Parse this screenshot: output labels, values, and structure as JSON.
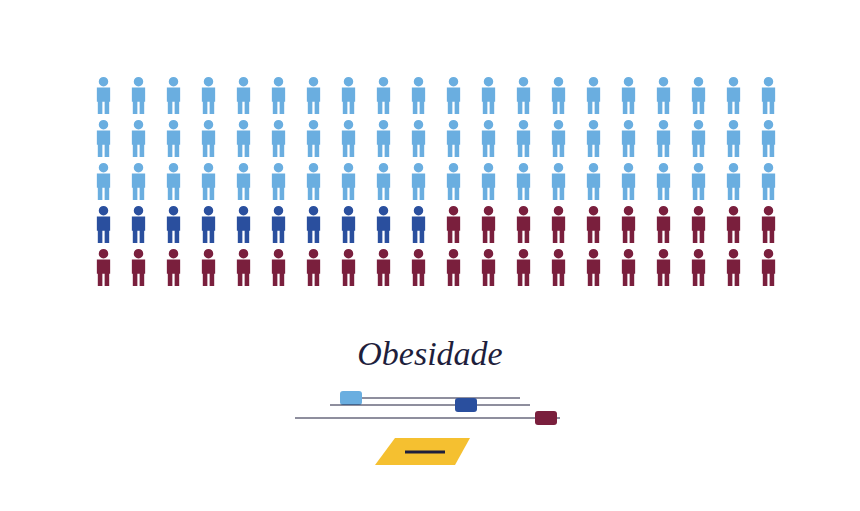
{
  "chart_data": {
    "type": "waffle",
    "title": "Obesidade",
    "categories": [
      null,
      null,
      null
    ],
    "values": [
      60,
      10,
      30
    ],
    "colors": [
      "#6aaee0",
      "#2a4f9e",
      "#7a1f3d"
    ],
    "tick_labels": false
  }
}
